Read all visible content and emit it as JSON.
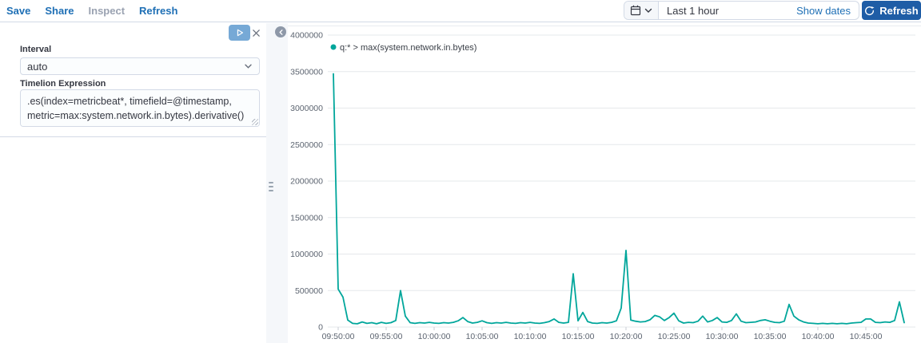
{
  "topbar": {
    "links": [
      {
        "label": "Save",
        "enabled": true
      },
      {
        "label": "Share",
        "enabled": true
      },
      {
        "label": "Inspect",
        "enabled": false
      },
      {
        "label": "Refresh",
        "enabled": true
      }
    ],
    "time_picker": {
      "selected_range": "Last 1 hour",
      "show_dates_label": "Show dates"
    },
    "refresh_button_label": "Refresh"
  },
  "editor": {
    "interval_label": "Interval",
    "interval_value": "auto",
    "expression_label": "Timelion Expression",
    "expression_value": ".es(index=metricbeat*, timefield=@timestamp, metric=max:system.network.in.bytes).derivative()"
  },
  "icons": [
    "calendar-icon",
    "chevron-down-icon",
    "refresh-icon",
    "play-icon",
    "close-icon",
    "collapse-left-icon",
    "drag-handle-icon"
  ],
  "colors": {
    "series_teal": "#00a69b",
    "refresh_button_blue": "#1f5da6",
    "link_blue": "#1e6fb5",
    "play_button_blue": "#76a9d6",
    "gridline_gray": "#e6e8eb"
  },
  "chart_data": {
    "type": "line",
    "title": "",
    "legend_position": "top-left",
    "grid": "horizontal-only",
    "ylim": [
      0,
      4000000
    ],
    "ytick_step": 500000,
    "yticks": [
      "0",
      "500000",
      "1000000",
      "1500000",
      "2000000",
      "2500000",
      "3000000",
      "3500000",
      "4000000"
    ],
    "xticks": [
      "09:50:00",
      "09:55:00",
      "10:00:00",
      "10:05:00",
      "10:10:00",
      "10:15:00",
      "10:20:00",
      "10:25:00",
      "10:30:00",
      "10:35:00",
      "10:40:00",
      "10:45:00"
    ],
    "series": [
      {
        "name": "q:* > max(system.network.in.bytes)",
        "color": "#00a69b",
        "points": [
          [
            "09:49:30",
            3470000
          ],
          [
            "09:50:00",
            520000
          ],
          [
            "09:50:30",
            410000
          ],
          [
            "09:51:00",
            95000
          ],
          [
            "09:51:30",
            50000
          ],
          [
            "09:52:00",
            45000
          ],
          [
            "09:52:30",
            70000
          ],
          [
            "09:53:00",
            50000
          ],
          [
            "09:53:30",
            60000
          ],
          [
            "09:54:00",
            45000
          ],
          [
            "09:54:30",
            65000
          ],
          [
            "09:55:00",
            50000
          ],
          [
            "09:55:30",
            60000
          ],
          [
            "09:56:00",
            90000
          ],
          [
            "09:56:30",
            500000
          ],
          [
            "09:57:00",
            150000
          ],
          [
            "09:57:30",
            60000
          ],
          [
            "09:58:00",
            50000
          ],
          [
            "09:58:30",
            60000
          ],
          [
            "09:59:00",
            55000
          ],
          [
            "09:59:30",
            65000
          ],
          [
            "10:00:00",
            55000
          ],
          [
            "10:00:30",
            50000
          ],
          [
            "10:01:00",
            60000
          ],
          [
            "10:01:30",
            55000
          ],
          [
            "10:02:00",
            65000
          ],
          [
            "10:02:30",
            85000
          ],
          [
            "10:03:00",
            130000
          ],
          [
            "10:03:30",
            75000
          ],
          [
            "10:04:00",
            55000
          ],
          [
            "10:04:30",
            65000
          ],
          [
            "10:05:00",
            85000
          ],
          [
            "10:05:30",
            60000
          ],
          [
            "10:06:00",
            50000
          ],
          [
            "10:06:30",
            60000
          ],
          [
            "10:07:00",
            55000
          ],
          [
            "10:07:30",
            65000
          ],
          [
            "10:08:00",
            55000
          ],
          [
            "10:08:30",
            50000
          ],
          [
            "10:09:00",
            60000
          ],
          [
            "10:09:30",
            55000
          ],
          [
            "10:10:00",
            65000
          ],
          [
            "10:10:30",
            55000
          ],
          [
            "10:11:00",
            50000
          ],
          [
            "10:11:30",
            60000
          ],
          [
            "10:12:00",
            75000
          ],
          [
            "10:12:30",
            110000
          ],
          [
            "10:13:00",
            65000
          ],
          [
            "10:13:30",
            55000
          ],
          [
            "10:14:00",
            65000
          ],
          [
            "10:14:30",
            730000
          ],
          [
            "10:15:00",
            85000
          ],
          [
            "10:15:30",
            200000
          ],
          [
            "10:16:00",
            75000
          ],
          [
            "10:16:30",
            55000
          ],
          [
            "10:17:00",
            50000
          ],
          [
            "10:17:30",
            60000
          ],
          [
            "10:18:00",
            55000
          ],
          [
            "10:18:30",
            65000
          ],
          [
            "10:19:00",
            85000
          ],
          [
            "10:19:30",
            260000
          ],
          [
            "10:20:00",
            1050000
          ],
          [
            "10:20:30",
            95000
          ],
          [
            "10:21:00",
            80000
          ],
          [
            "10:21:30",
            70000
          ],
          [
            "10:22:00",
            75000
          ],
          [
            "10:22:30",
            100000
          ],
          [
            "10:23:00",
            160000
          ],
          [
            "10:23:30",
            140000
          ],
          [
            "10:24:00",
            90000
          ],
          [
            "10:24:30",
            130000
          ],
          [
            "10:25:00",
            190000
          ],
          [
            "10:25:30",
            85000
          ],
          [
            "10:26:00",
            55000
          ],
          [
            "10:26:30",
            65000
          ],
          [
            "10:27:00",
            60000
          ],
          [
            "10:27:30",
            80000
          ],
          [
            "10:28:00",
            150000
          ],
          [
            "10:28:30",
            70000
          ],
          [
            "10:29:00",
            90000
          ],
          [
            "10:29:30",
            130000
          ],
          [
            "10:30:00",
            70000
          ],
          [
            "10:30:30",
            65000
          ],
          [
            "10:31:00",
            90000
          ],
          [
            "10:31:30",
            180000
          ],
          [
            "10:32:00",
            80000
          ],
          [
            "10:32:30",
            60000
          ],
          [
            "10:33:00",
            65000
          ],
          [
            "10:33:30",
            70000
          ],
          [
            "10:34:00",
            90000
          ],
          [
            "10:34:30",
            100000
          ],
          [
            "10:35:00",
            80000
          ],
          [
            "10:35:30",
            65000
          ],
          [
            "10:36:00",
            60000
          ],
          [
            "10:36:30",
            80000
          ],
          [
            "10:37:00",
            310000
          ],
          [
            "10:37:30",
            150000
          ],
          [
            "10:38:00",
            100000
          ],
          [
            "10:38:30",
            70000
          ],
          [
            "10:39:00",
            55000
          ],
          [
            "10:39:30",
            50000
          ],
          [
            "10:40:00",
            45000
          ],
          [
            "10:40:30",
            50000
          ],
          [
            "10:41:00",
            45000
          ],
          [
            "10:41:30",
            50000
          ],
          [
            "10:42:00",
            45000
          ],
          [
            "10:42:30",
            50000
          ],
          [
            "10:43:00",
            45000
          ],
          [
            "10:43:30",
            55000
          ],
          [
            "10:44:00",
            60000
          ],
          [
            "10:44:30",
            65000
          ],
          [
            "10:45:00",
            110000
          ],
          [
            "10:45:30",
            110000
          ],
          [
            "10:46:00",
            65000
          ],
          [
            "10:46:30",
            60000
          ],
          [
            "10:47:00",
            70000
          ],
          [
            "10:47:30",
            65000
          ],
          [
            "10:48:00",
            90000
          ],
          [
            "10:48:30",
            345000
          ],
          [
            "10:49:00",
            60000
          ]
        ]
      }
    ]
  }
}
